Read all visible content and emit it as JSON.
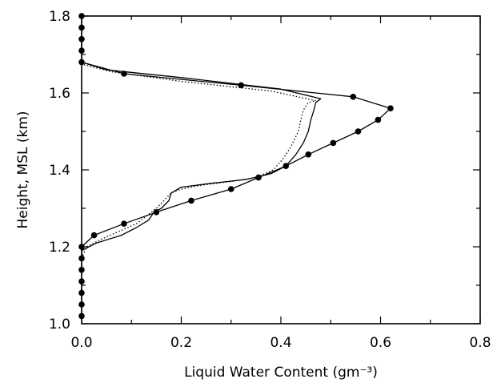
{
  "chart_data": {
    "type": "line",
    "title": "",
    "xlabel": "Liquid Water Content (gm⁻³)",
    "ylabel": "Height, MSL (km)",
    "xlim": [
      0.0,
      0.8
    ],
    "ylim": [
      1.0,
      1.8
    ],
    "xticks": [
      "0.0",
      "0.2",
      "0.4",
      "0.6",
      "0.8"
    ],
    "yticks": [
      "1.0",
      "1.2",
      "1.4",
      "1.6",
      "1.8"
    ],
    "grid": false,
    "series": [
      {
        "marker": "circle",
        "line": "solid",
        "color": "#000000",
        "points": [
          [
            0.0,
            1.02
          ],
          [
            0.0,
            1.05
          ],
          [
            0.0,
            1.08
          ],
          [
            0.0,
            1.11
          ],
          [
            0.0,
            1.14
          ],
          [
            0.0,
            1.17
          ],
          [
            0.0,
            1.2
          ],
          [
            0.025,
            1.23
          ],
          [
            0.085,
            1.26
          ],
          [
            0.15,
            1.29
          ],
          [
            0.22,
            1.32
          ],
          [
            0.3,
            1.35
          ],
          [
            0.355,
            1.38
          ],
          [
            0.41,
            1.41
          ],
          [
            0.455,
            1.44
          ],
          [
            0.505,
            1.47
          ],
          [
            0.555,
            1.5
          ],
          [
            0.595,
            1.53
          ],
          [
            0.62,
            1.56
          ],
          [
            0.545,
            1.59
          ],
          [
            0.32,
            1.62
          ],
          [
            0.085,
            1.65
          ],
          [
            0.0,
            1.68
          ],
          [
            0.0,
            1.71
          ],
          [
            0.0,
            1.74
          ],
          [
            0.0,
            1.77
          ],
          [
            0.0,
            1.8
          ]
        ]
      },
      {
        "marker": "none",
        "line": "solid",
        "color": "#000000",
        "points": [
          [
            0.0,
            1.17
          ],
          [
            0.0,
            1.19
          ],
          [
            0.03,
            1.21
          ],
          [
            0.08,
            1.23
          ],
          [
            0.11,
            1.25
          ],
          [
            0.135,
            1.27
          ],
          [
            0.145,
            1.29
          ],
          [
            0.16,
            1.3
          ],
          [
            0.175,
            1.32
          ],
          [
            0.18,
            1.34
          ],
          [
            0.2,
            1.355
          ],
          [
            0.26,
            1.365
          ],
          [
            0.33,
            1.375
          ],
          [
            0.38,
            1.39
          ],
          [
            0.41,
            1.41
          ],
          [
            0.43,
            1.44
          ],
          [
            0.445,
            1.47
          ],
          [
            0.455,
            1.5
          ],
          [
            0.46,
            1.53
          ],
          [
            0.465,
            1.55
          ],
          [
            0.47,
            1.575
          ],
          [
            0.48,
            1.585
          ],
          [
            0.4,
            1.61
          ],
          [
            0.2,
            1.64
          ],
          [
            0.05,
            1.66
          ],
          [
            0.0,
            1.68
          ]
        ]
      },
      {
        "marker": "none",
        "line": "dotted",
        "color": "#000000",
        "points": [
          [
            0.0,
            1.17
          ],
          [
            0.01,
            1.2
          ],
          [
            0.04,
            1.22
          ],
          [
            0.075,
            1.24
          ],
          [
            0.11,
            1.26
          ],
          [
            0.13,
            1.28
          ],
          [
            0.15,
            1.3
          ],
          [
            0.165,
            1.32
          ],
          [
            0.18,
            1.34
          ],
          [
            0.2,
            1.35
          ],
          [
            0.24,
            1.36
          ],
          [
            0.3,
            1.37
          ],
          [
            0.35,
            1.38
          ],
          [
            0.385,
            1.4
          ],
          [
            0.405,
            1.43
          ],
          [
            0.42,
            1.46
          ],
          [
            0.435,
            1.5
          ],
          [
            0.44,
            1.53
          ],
          [
            0.445,
            1.555
          ],
          [
            0.455,
            1.575
          ],
          [
            0.47,
            1.58
          ],
          [
            0.38,
            1.605
          ],
          [
            0.2,
            1.63
          ],
          [
            0.06,
            1.655
          ],
          [
            0.0,
            1.675
          ]
        ]
      }
    ]
  }
}
